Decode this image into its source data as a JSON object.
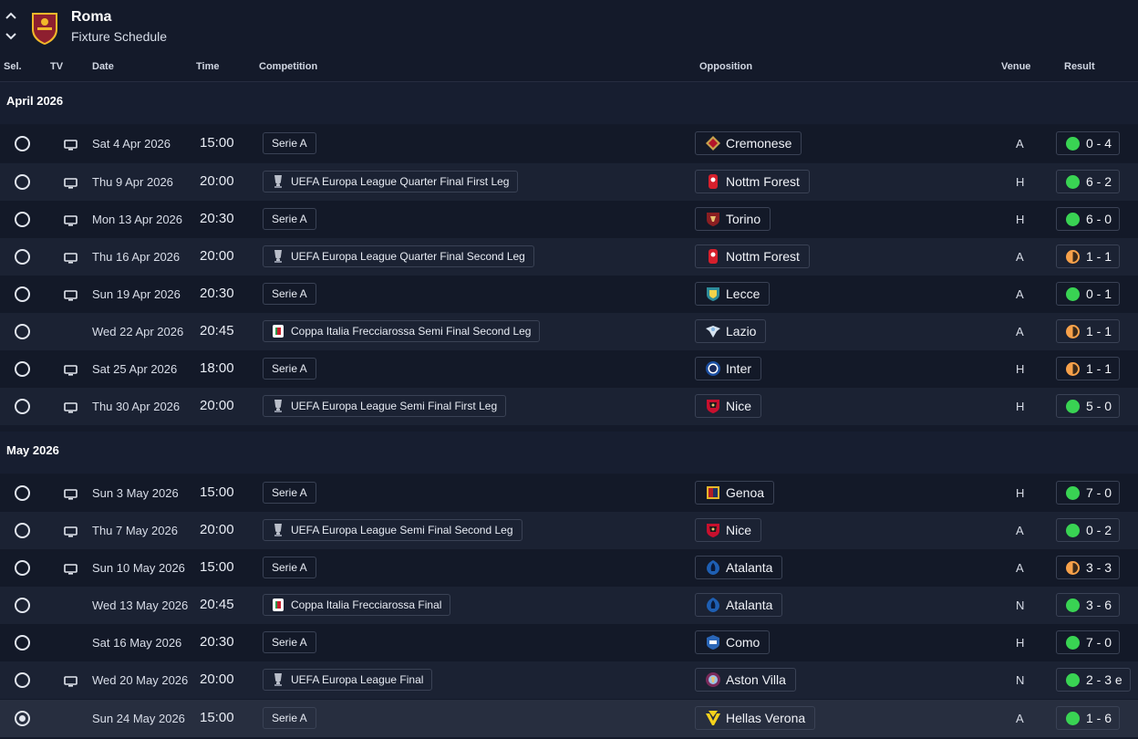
{
  "header": {
    "club": "Roma",
    "title": "Fixture Schedule"
  },
  "columns": {
    "sel": "Sel.",
    "tv": "TV",
    "date": "Date",
    "time": "Time",
    "competition": "Competition",
    "opposition": "Opposition",
    "venue": "Venue",
    "result": "Result"
  },
  "colors": {
    "win": "#39d353",
    "draw": "#f7a14a",
    "background": "#141a2a"
  },
  "sections": [
    {
      "label": "April 2026"
    },
    {
      "label": "May 2026"
    }
  ],
  "fixtures": [
    {
      "date": "Sat 4 Apr 2026",
      "time": "15:00",
      "tv": true,
      "competition": "Serie A",
      "comp_icon": "none",
      "opponent": "Cremonese",
      "badge": "cremonese-badge",
      "venue": "A",
      "result": "0 - 4",
      "outcome": "W",
      "selected": false
    },
    {
      "date": "Thu 9 Apr 2026",
      "time": "20:00",
      "tv": true,
      "competition": "UEFA Europa League Quarter Final First Leg",
      "comp_icon": "europa-league-trophy",
      "opponent": "Nottm Forest",
      "badge": "nottm-forest-badge",
      "venue": "H",
      "result": "6 - 2",
      "outcome": "W",
      "selected": false
    },
    {
      "date": "Mon 13 Apr 2026",
      "time": "20:30",
      "tv": true,
      "competition": "Serie A",
      "comp_icon": "none",
      "opponent": "Torino",
      "badge": "torino-badge",
      "venue": "H",
      "result": "6 - 0",
      "outcome": "W",
      "selected": false
    },
    {
      "date": "Thu 16 Apr 2026",
      "time": "20:00",
      "tv": true,
      "competition": "UEFA Europa League Quarter Final Second Leg",
      "comp_icon": "europa-league-trophy",
      "opponent": "Nottm Forest",
      "badge": "nottm-forest-badge",
      "venue": "A",
      "result": "1 - 1",
      "outcome": "D",
      "selected": false
    },
    {
      "date": "Sun 19 Apr 2026",
      "time": "20:30",
      "tv": true,
      "competition": "Serie A",
      "comp_icon": "none",
      "opponent": "Lecce",
      "badge": "lecce-badge",
      "venue": "A",
      "result": "0 - 1",
      "outcome": "W",
      "selected": false
    },
    {
      "date": "Wed 22 Apr 2026",
      "time": "20:45",
      "tv": false,
      "competition": "Coppa Italia Frecciarossa Semi Final Second Leg",
      "comp_icon": "coppa-italia-logo",
      "opponent": "Lazio",
      "badge": "lazio-badge",
      "venue": "A",
      "result": "1 - 1",
      "outcome": "D",
      "selected": false
    },
    {
      "date": "Sat 25 Apr 2026",
      "time": "18:00",
      "tv": true,
      "competition": "Serie A",
      "comp_icon": "none",
      "opponent": "Inter",
      "badge": "inter-badge",
      "venue": "H",
      "result": "1 - 1",
      "outcome": "D",
      "selected": false
    },
    {
      "date": "Thu 30 Apr 2026",
      "time": "20:00",
      "tv": true,
      "competition": "UEFA Europa League Semi Final First Leg",
      "comp_icon": "europa-league-trophy",
      "opponent": "Nice",
      "badge": "nice-badge",
      "venue": "H",
      "result": "5 - 0",
      "outcome": "W",
      "selected": false
    },
    {
      "date": "Sun 3 May 2026",
      "time": "15:00",
      "tv": true,
      "competition": "Serie A",
      "comp_icon": "none",
      "opponent": "Genoa",
      "badge": "genoa-badge",
      "venue": "H",
      "result": "7 - 0",
      "outcome": "W",
      "selected": false
    },
    {
      "date": "Thu 7 May 2026",
      "time": "20:00",
      "tv": true,
      "competition": "UEFA Europa League Semi Final Second Leg",
      "comp_icon": "europa-league-trophy",
      "opponent": "Nice",
      "badge": "nice-badge",
      "venue": "A",
      "result": "0 - 2",
      "outcome": "W",
      "selected": false
    },
    {
      "date": "Sun 10 May 2026",
      "time": "15:00",
      "tv": true,
      "competition": "Serie A",
      "comp_icon": "none",
      "opponent": "Atalanta",
      "badge": "atalanta-badge",
      "venue": "A",
      "result": "3 - 3",
      "outcome": "D",
      "selected": false
    },
    {
      "date": "Wed 13 May 2026",
      "time": "20:45",
      "tv": false,
      "competition": "Coppa Italia Frecciarossa Final",
      "comp_icon": "coppa-italia-logo",
      "opponent": "Atalanta",
      "badge": "atalanta-badge",
      "venue": "N",
      "result": "3 - 6",
      "outcome": "W",
      "selected": false
    },
    {
      "date": "Sat 16 May 2026",
      "time": "20:30",
      "tv": false,
      "competition": "Serie A",
      "comp_icon": "none",
      "opponent": "Como",
      "badge": "como-badge",
      "venue": "H",
      "result": "7 - 0",
      "outcome": "W",
      "selected": false
    },
    {
      "date": "Wed 20 May 2026",
      "time": "20:00",
      "tv": true,
      "competition": "UEFA Europa League Final",
      "comp_icon": "europa-league-trophy",
      "opponent": "Aston Villa",
      "badge": "aston-villa-badge",
      "venue": "N",
      "result": "2 - 3 e",
      "outcome": "W",
      "selected": false
    },
    {
      "date": "Sun 24 May 2026",
      "time": "15:00",
      "tv": false,
      "competition": "Serie A",
      "comp_icon": "none",
      "opponent": "Hellas Verona",
      "badge": "hellas-verona-badge",
      "venue": "A",
      "result": "1 - 6",
      "outcome": "W",
      "selected": true
    }
  ]
}
